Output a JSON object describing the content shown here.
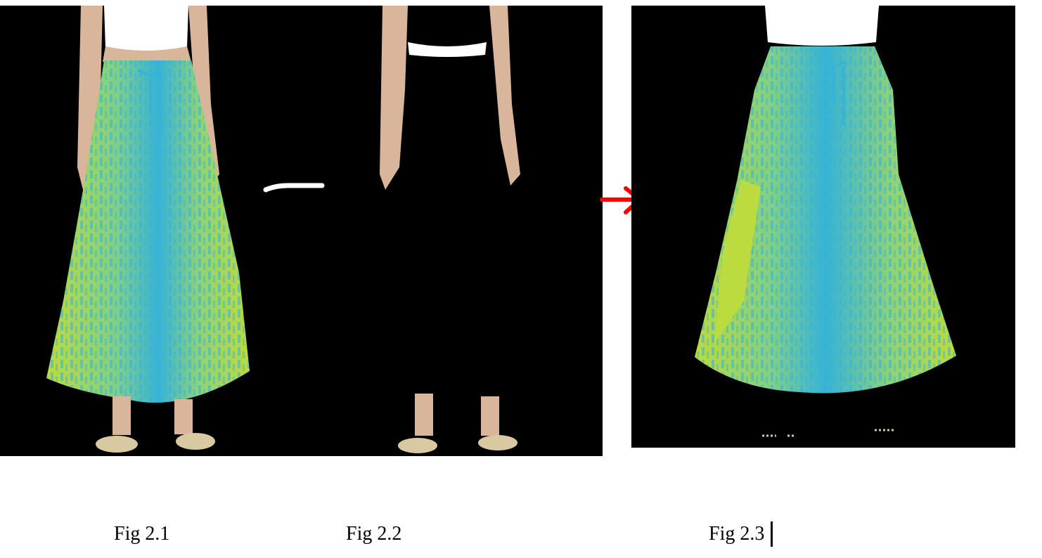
{
  "figures": {
    "fig_2_1": {
      "caption": "Fig 2.1"
    },
    "fig_2_2": {
      "caption": "Fig 2.2"
    },
    "fig_2_3": {
      "caption": "Fig 2.3"
    }
  },
  "colors": {
    "background": "#000000",
    "skirt_base": "#bcdb3f",
    "skirt_dye": "#37b3d6",
    "top": "#ffffff",
    "skin": "#d9b59b",
    "shoe": "#d8c9a0",
    "arrow": "#ff0000",
    "brush_stroke": "#ffffff"
  },
  "icons": {
    "arrow": "right-arrow-icon",
    "cursor": "text-cursor"
  }
}
